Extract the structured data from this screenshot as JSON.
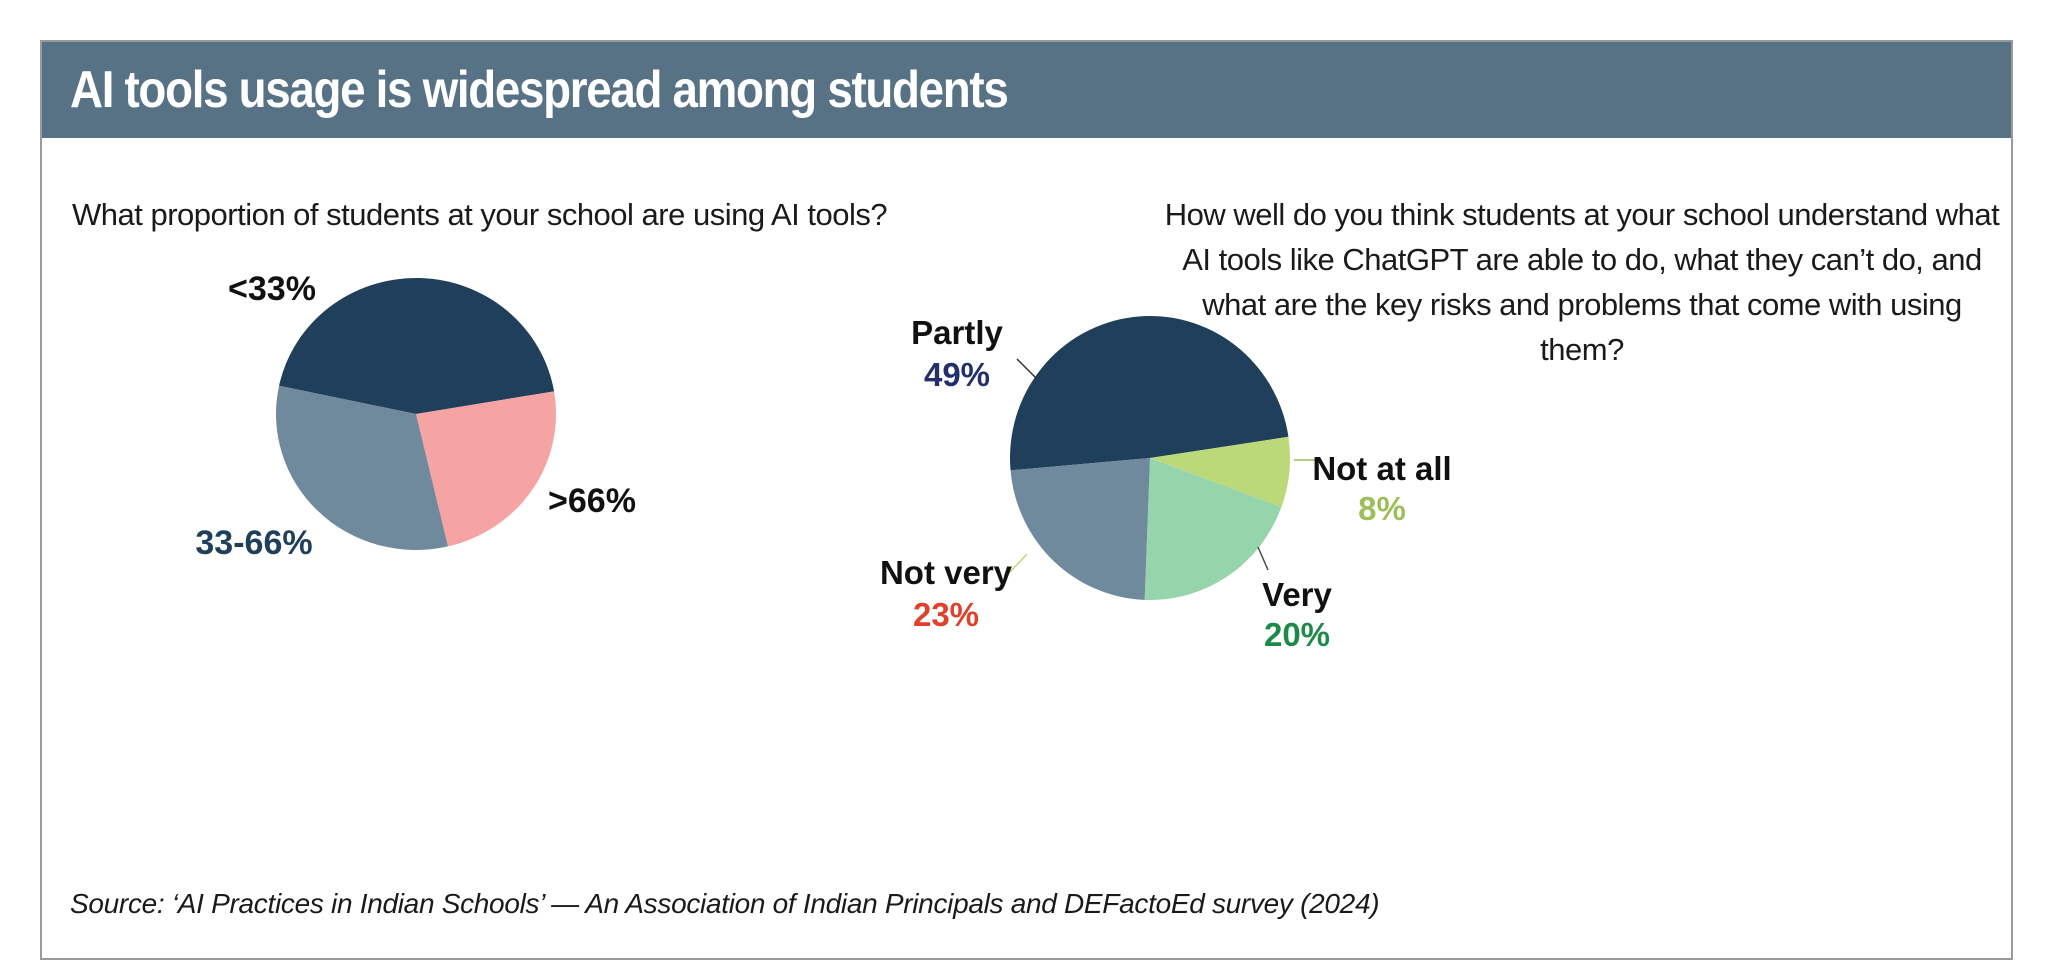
{
  "header": {
    "title": "AI tools usage is widespread among students"
  },
  "source": "Source: ‘AI Practices in Indian Schools’ — An Association of Indian Principals and DEFactoEd survey (2024)",
  "chart_data": [
    {
      "type": "pie",
      "title": "What proportion of students at your school are using AI tools?",
      "slices": [
        {
          "label": "<33%",
          "value": 44,
          "color": "#1f3f5a",
          "label_color": "#111111"
        },
        {
          "label": ">66%",
          "value": 24,
          "color": "#f5a3a3",
          "label_color": "#111111"
        },
        {
          "label": "33-66%",
          "value": 32,
          "color": "#6f899d",
          "label_color": "#1f3f5a"
        }
      ]
    },
    {
      "type": "pie",
      "title": "How well do you think students at your school understand what AI tools like ChatGPT are able to do, what they can’t do, and what are the key risks and problems that come with using them?",
      "slices": [
        {
          "label": "Partly",
          "value": 49,
          "value_label": "49%",
          "color": "#1f3f5a",
          "value_color": "#23306b"
        },
        {
          "label": "Not at all",
          "value": 8,
          "value_label": "8%",
          "color": "#bcd97a",
          "value_color": "#9cbf5a"
        },
        {
          "label": "Very",
          "value": 20,
          "value_label": "20%",
          "color": "#96d4ab",
          "value_color": "#1e8a4a"
        },
        {
          "label": "Not very",
          "value": 23,
          "value_label": "23%",
          "color": "#6f899d",
          "value_color": "#e0412a"
        }
      ]
    }
  ]
}
